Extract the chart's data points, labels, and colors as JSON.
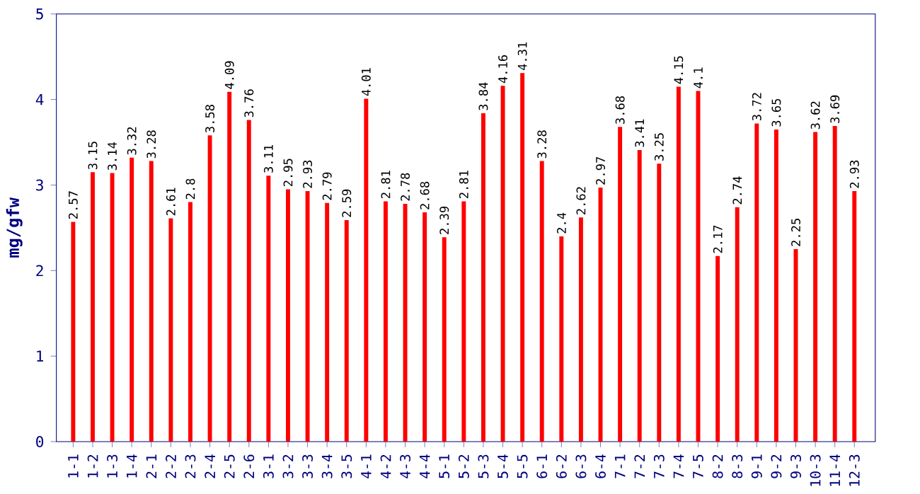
{
  "chart_data": {
    "type": "bar",
    "ylabel": "mg/gfw",
    "categories": [
      "1-1",
      "1-2",
      "1-3",
      "1-4",
      "2-1",
      "2-2",
      "2-3",
      "2-4",
      "2-5",
      "2-6",
      "3-1",
      "3-2",
      "3-3",
      "3-4",
      "3-5",
      "4-1",
      "4-2",
      "4-3",
      "4-4",
      "5-1",
      "5-2",
      "5-3",
      "5-4",
      "5-5",
      "6-1",
      "6-2",
      "6-3",
      "6-4",
      "7-1",
      "7-2",
      "7-3",
      "7-4",
      "7-5",
      "8-2",
      "8-3",
      "9-1",
      "9-2",
      "9-3",
      "10-3",
      "11-4",
      "12-3"
    ],
    "values": [
      2.57,
      3.15,
      3.14,
      3.32,
      3.28,
      2.61,
      2.8,
      3.58,
      4.09,
      3.76,
      3.11,
      2.95,
      2.93,
      2.79,
      2.59,
      4.01,
      2.81,
      2.78,
      2.68,
      2.39,
      2.81,
      3.84,
      4.16,
      4.31,
      3.28,
      2.4,
      2.62,
      2.97,
      3.68,
      3.41,
      3.25,
      4.15,
      4.1,
      2.17,
      2.74,
      3.72,
      3.65,
      2.25,
      3.62,
      3.69,
      2.93
    ],
    "color": "#ff0000",
    "ylim": [
      0,
      5
    ],
    "yticks": [
      0,
      1,
      2,
      3,
      4,
      5
    ],
    "data_labels": true,
    "grid": false
  }
}
